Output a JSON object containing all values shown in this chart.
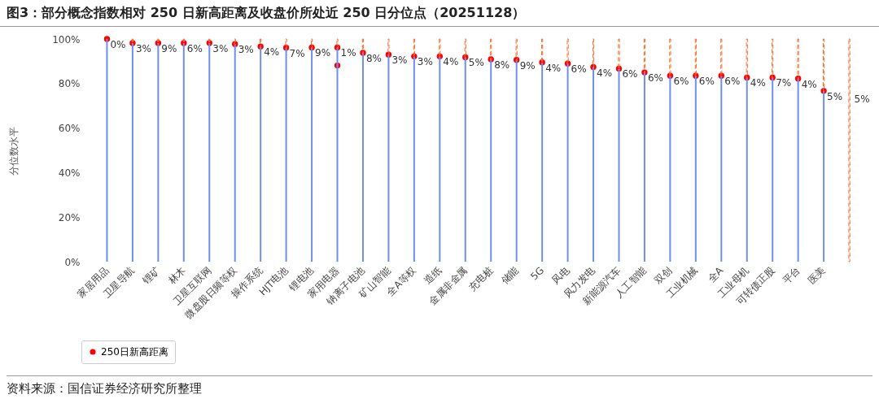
{
  "chart_data": {
    "type": "bar",
    "title": "图3：部分概念指数相对 250 日新高距离及收盘价所处近 250 日分位点（20251128）",
    "ylabel": "分位数水平",
    "ylim": [
      0,
      100
    ],
    "yticks": [
      {
        "value": 0,
        "label": "0%"
      },
      {
        "value": 20,
        "label": "20%"
      },
      {
        "value": 40,
        "label": "40%"
      },
      {
        "value": 60,
        "label": "60%"
      },
      {
        "value": 80,
        "label": "80%"
      },
      {
        "value": 100,
        "label": "100%"
      }
    ],
    "categories": [
      "家居用品",
      "卫星导航",
      "锂矿",
      "林木",
      "卫星互联网",
      "微盘股日频等权",
      "操作系统",
      "HJT电池",
      "锂电池",
      "家用电器",
      "钠离子电池",
      "矿山智能",
      "全A等权",
      "造纸",
      "金属非金属",
      "充电桩",
      "储能",
      "5G",
      "风电",
      "风力发电",
      "新能源汽车",
      "人工智能",
      "双创",
      "工业机械",
      "全A",
      "工业母机",
      "可转债正股",
      "平台",
      "医美",
      null
    ],
    "stacked": true,
    "legend": "bottom",
    "grid": false,
    "series": [
      {
        "color": "#6f8ff0",
        "line_style": "solid",
        "values": [
          100,
          98.2,
          98.2,
          98.2,
          98.2,
          97.7,
          96.6,
          96.1,
          96.2,
          96.2,
          93.8,
          93.0,
          92.2,
          92.2,
          91.8,
          90.9,
          90.6,
          89.5,
          89.0,
          87.4,
          86.7,
          85.0,
          83.5,
          83.5,
          83.5,
          82.7,
          82.7,
          82.2,
          76.7,
          null
        ]
      },
      {
        "color": "#ff6a2a",
        "line_style": "dashed",
        "values": [
          0,
          1.8,
          1.8,
          1.8,
          1.8,
          2.3,
          3.4,
          3.9,
          3.8,
          3.8,
          6.2,
          7.0,
          7.8,
          7.8,
          8.2,
          9.1,
          9.4,
          10.5,
          11.0,
          12.6,
          13.3,
          15.0,
          16.5,
          16.5,
          16.5,
          17.3,
          17.3,
          17.8,
          23.3,
          100
        ]
      },
      {
        "type": "scatter",
        "name": "250日新高距离",
        "color": "#ff0000",
        "marker": "circle",
        "x": [
          "家居用品",
          "卫星导航",
          "锂矿",
          "林木",
          "卫星互联网",
          "微盘股日频等权",
          "操作系统",
          "HJT电池",
          "锂电池",
          "家用电器",
          "钠离子电池",
          "矿山智能",
          "全A等权",
          "造纸",
          "金属非金属",
          "充电桩",
          "储能",
          "5G",
          "风电",
          "风力发电",
          "新能源汽车",
          "人工智能",
          "双创",
          "工业机械",
          "全A",
          "工业母机",
          "可转债正股",
          "平台",
          "医美"
        ],
        "values": [
          100,
          98.2,
          98.2,
          98.2,
          98.2,
          97.7,
          96.6,
          96.1,
          96.2,
          96.2,
          93.8,
          93.0,
          92.2,
          92.2,
          91.8,
          90.9,
          90.6,
          89.5,
          89.0,
          87.4,
          86.7,
          85.0,
          83.5,
          83.5,
          83.5,
          82.7,
          82.7,
          82.2,
          76.7
        ]
      },
      {
        "type": "scatter",
        "color": "#ff0000",
        "marker": "circle",
        "x": [
          "家用电器"
        ],
        "values": [
          88.1
        ]
      }
    ],
    "annotations": [
      {
        "text": "0%",
        "x": "家居用品",
        "y": 100
      },
      {
        "text": "3%",
        "x": "卫星导航",
        "y": 98.2
      },
      {
        "text": "9%",
        "x": "锂矿",
        "y": 98.2
      },
      {
        "text": "6%",
        "x": "林木",
        "y": 98.2
      },
      {
        "text": "3%",
        "x": "卫星互联网",
        "y": 98.2
      },
      {
        "text": "3%",
        "x": "微盘股日频等权",
        "y": 97.7
      },
      {
        "text": "4%",
        "x": "操作系统",
        "y": 96.6
      },
      {
        "text": "7%",
        "x": "HJT电池",
        "y": 96.1
      },
      {
        "text": "9%",
        "x": "锂电池",
        "y": 96.2
      },
      {
        "text": "1%",
        "x": "家用电器",
        "y": 96.2
      },
      {
        "text": "8%",
        "x": "钠离子电池",
        "y": 93.8
      },
      {
        "text": "3%",
        "x": "矿山智能",
        "y": 93.0
      },
      {
        "text": "3%",
        "x": "全A等权",
        "y": 92.2
      },
      {
        "text": "4%",
        "x": "造纸",
        "y": 92.2
      },
      {
        "text": "5%",
        "x": "金属非金属",
        "y": 91.8
      },
      {
        "text": "8%",
        "x": "充电桩",
        "y": 90.9
      },
      {
        "text": "9%",
        "x": "储能",
        "y": 90.6
      },
      {
        "text": "4%",
        "x": "5G",
        "y": 89.5
      },
      {
        "text": "6%",
        "x": "风电",
        "y": 89.0
      },
      {
        "text": "4%",
        "x": "风力发电",
        "y": 87.4
      },
      {
        "text": "6%",
        "x": "新能源汽车",
        "y": 86.7
      },
      {
        "text": "6%",
        "x": "人工智能",
        "y": 85.0
      },
      {
        "text": "6%",
        "x": "双创",
        "y": 83.5
      },
      {
        "text": "6%",
        "x": "工业机械",
        "y": 83.5
      },
      {
        "text": "6%",
        "x": "全A",
        "y": 83.5
      },
      {
        "text": "4%",
        "x": "工业母机",
        "y": 82.7
      },
      {
        "text": "7%",
        "x": "可转债正股",
        "y": 82.7
      },
      {
        "text": "4%",
        "x": "平台",
        "y": 82.2
      },
      {
        "text": "5%",
        "x": "医美",
        "y": 76.7
      },
      "5%",
      "资料来源：国信证券经济研究所整理"
    ]
  }
}
